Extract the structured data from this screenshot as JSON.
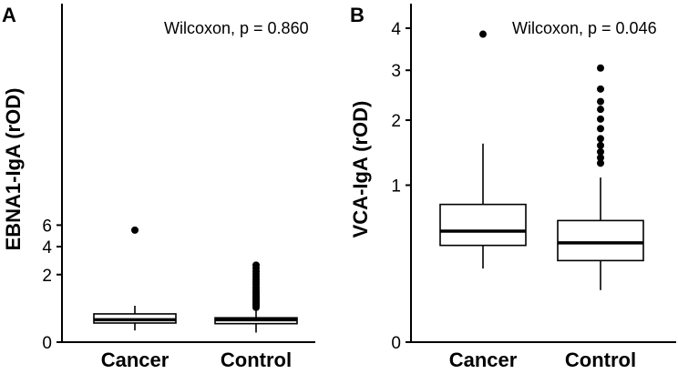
{
  "chart_data": [
    {
      "panel_label": "A",
      "type": "box",
      "ylabel": "EBNA1-IgA (rOD)",
      "yticks": [
        0,
        2,
        4,
        6
      ],
      "annotation": "Wilcoxon, p = 0.860",
      "categories": [
        "Cancer",
        "Control"
      ],
      "boxes": [
        {
          "category": "Cancer",
          "whisker_low": 0.06,
          "q1": 0.16,
          "median": 0.22,
          "q3": 0.35,
          "whisker_high": 0.58,
          "outliers": [
            5.5
          ]
        },
        {
          "category": "Control",
          "whisker_low": 0.04,
          "q1": 0.15,
          "median": 0.22,
          "q3": 0.26,
          "whisker_high": 0.43,
          "outliers": [
            0.53,
            0.6,
            0.66,
            0.72,
            0.79,
            0.86,
            0.94,
            1.02,
            1.1,
            1.2,
            1.32,
            1.45,
            1.58,
            1.72,
            1.87,
            2.03,
            2.2,
            2.4,
            2.6
          ]
        }
      ]
    },
    {
      "panel_label": "B",
      "type": "box",
      "ylabel": "VCA-IgA (rOD)",
      "yticks": [
        0,
        1,
        2,
        3,
        4
      ],
      "annotation": "Wilcoxon, p = 0.046",
      "categories": [
        "Cancer",
        "Control"
      ],
      "boxes": [
        {
          "category": "Cancer",
          "whisker_low": 0.22,
          "q1": 0.38,
          "median": 0.5,
          "q3": 0.77,
          "whisker_high": 1.6,
          "outliers": [
            3.85
          ]
        },
        {
          "category": "Control",
          "whisker_low": 0.11,
          "q1": 0.27,
          "median": 0.4,
          "q3": 0.6,
          "whisker_high": 1.1,
          "outliers": [
            1.3,
            1.38,
            1.47,
            1.57,
            1.68,
            1.85,
            2.02,
            2.2,
            2.35,
            2.6,
            3.05
          ]
        }
      ]
    }
  ]
}
